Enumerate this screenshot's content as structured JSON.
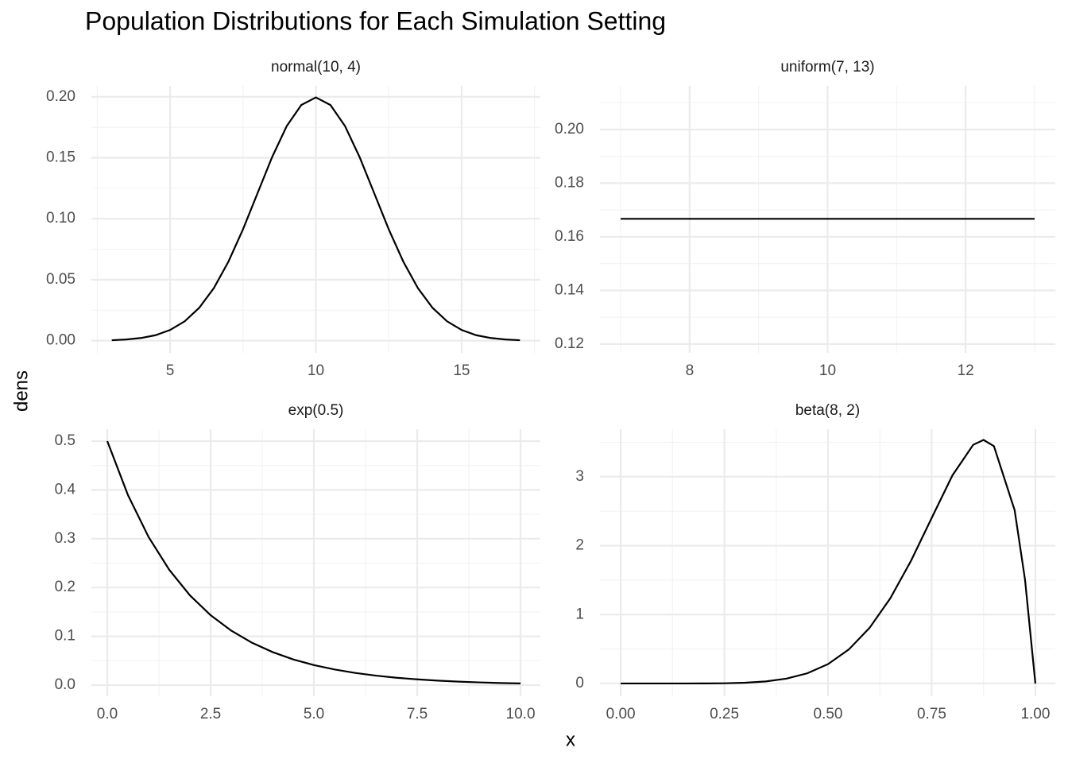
{
  "title": "Population Distributions for Each Simulation Setting",
  "x_label": "x",
  "y_label": "dens",
  "chart_data": [
    {
      "type": "line",
      "title": "normal(10, 4)",
      "x": [
        3,
        3.5,
        4,
        4.5,
        5,
        5.5,
        6,
        6.5,
        7,
        7.5,
        8,
        8.5,
        9,
        9.5,
        10,
        10.5,
        11,
        11.5,
        12,
        12.5,
        13,
        13.5,
        14,
        14.5,
        15,
        15.5,
        16,
        16.5,
        17
      ],
      "values": [
        0.0004,
        0.001,
        0.0022,
        0.0045,
        0.0088,
        0.0159,
        0.027,
        0.0431,
        0.0648,
        0.0913,
        0.121,
        0.1506,
        0.176,
        0.1933,
        0.1995,
        0.1933,
        0.176,
        0.1506,
        0.121,
        0.0913,
        0.0648,
        0.0431,
        0.027,
        0.0159,
        0.0088,
        0.0045,
        0.0022,
        0.001,
        0.0004
      ],
      "xlim": [
        2.3,
        17.7
      ],
      "ylim": [
        -0.01,
        0.209
      ],
      "xticks": [
        5,
        10,
        15
      ],
      "yticks": [
        {
          "value": 0,
          "label": "0.00"
        },
        0.05,
        {
          "value": 0.1,
          "label": "0.10"
        },
        0.15,
        {
          "value": 0.2,
          "label": "0.20"
        }
      ],
      "color": "#000000",
      "grid": true
    },
    {
      "type": "line",
      "title": "uniform(7, 13)",
      "x": [
        7,
        13
      ],
      "values": [
        0.1667,
        0.1667
      ],
      "xlim": [
        6.7,
        13.3
      ],
      "ylim": [
        0.1167,
        0.2163
      ],
      "xticks": [
        8,
        10,
        12
      ],
      "yticks": [
        0.12,
        0.14,
        0.16,
        0.18,
        {
          "value": 0.2,
          "label": "0.20"
        }
      ],
      "color": "#000000",
      "grid": true
    },
    {
      "type": "line",
      "title": "exp(0.5)",
      "x": [
        0,
        0.5,
        1,
        1.5,
        2,
        2.5,
        3,
        3.5,
        4,
        4.5,
        5,
        5.5,
        6,
        6.5,
        7,
        7.5,
        8,
        8.5,
        9,
        9.5,
        10
      ],
      "values": [
        0.5,
        0.3894,
        0.3033,
        0.2362,
        0.1839,
        0.1433,
        0.1116,
        0.0869,
        0.0677,
        0.0527,
        0.041,
        0.032,
        0.0249,
        0.0194,
        0.0151,
        0.0118,
        0.0092,
        0.0071,
        0.0056,
        0.0043,
        0.0034
      ],
      "xlim": [
        -0.385,
        10.48
      ],
      "ylim": [
        -0.0228,
        0.5244
      ],
      "xticks": [
        {
          "value": 0,
          "label": "0.0"
        },
        2.5,
        {
          "value": 5,
          "label": "5.0"
        },
        7.5,
        {
          "value": 10,
          "label": "10.0"
        }
      ],
      "yticks": [
        {
          "value": 0,
          "label": "0.0"
        },
        0.1,
        0.2,
        0.3,
        0.4,
        0.5
      ],
      "color": "#000000",
      "grid": true
    },
    {
      "type": "line",
      "title": "beta(8, 2)",
      "x": [
        0,
        0.05,
        0.1,
        0.15,
        0.2,
        0.25,
        0.3,
        0.35,
        0.4,
        0.45,
        0.5,
        0.55,
        0.6,
        0.65,
        0.7,
        0.75,
        0.8,
        0.85,
        0.875,
        0.9,
        0.95,
        0.975,
        1
      ],
      "values": [
        0,
        0,
        0,
        0.0001,
        0.0007,
        0.0033,
        0.011,
        0.0301,
        0.0708,
        0.148,
        0.281,
        0.493,
        0.806,
        1.235,
        1.779,
        2.403,
        3.02,
        3.463,
        3.534,
        3.444,
        2.514,
        1.508,
        0
      ],
      "xlim": [
        -0.05,
        1.048
      ],
      "ylim": [
        -0.185,
        3.69
      ],
      "xticks": [
        {
          "value": 0,
          "label": "0.00"
        },
        0.25,
        {
          "value": 0.5,
          "label": "0.50"
        },
        0.75,
        {
          "value": 1,
          "label": "1.00"
        }
      ],
      "yticks": [
        0,
        1,
        2,
        3
      ],
      "color": "#000000",
      "grid": true
    }
  ]
}
